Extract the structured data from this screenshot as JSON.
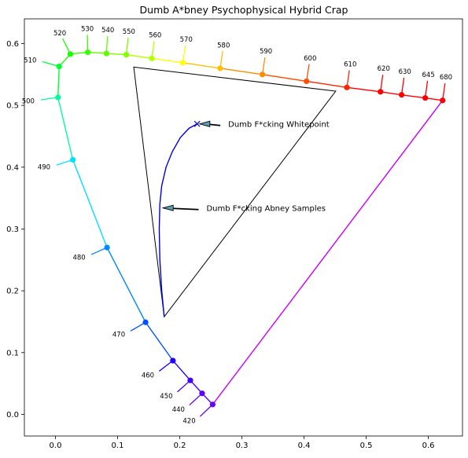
{
  "chart_data": {
    "type": "line",
    "title": "Dumb A*bney Psychophysical Hybrid Crap",
    "xlabel": "",
    "ylabel": "",
    "xlim": [
      -0.05,
      0.655
    ],
    "ylim": [
      -0.035,
      0.64
    ],
    "x_ticks": [
      0.0,
      0.1,
      0.2,
      0.3,
      0.4,
      0.5,
      0.6
    ],
    "x_tick_labels": [
      "0.0",
      "0.1",
      "0.2",
      "0.3",
      "0.4",
      "0.5",
      "0.6"
    ],
    "y_ticks": [
      0.0,
      0.1,
      0.2,
      0.3,
      0.4,
      0.5,
      0.6
    ],
    "y_tick_labels": [
      "0.0",
      "0.1",
      "0.2",
      "0.3",
      "0.4",
      "0.5",
      "0.6"
    ],
    "grid": false,
    "legend": "none",
    "spectral_locus": [
      {
        "wavelength": "420",
        "x": 0.253,
        "y": 0.016,
        "color": "#6a00ff"
      },
      {
        "wavelength": "440",
        "x": 0.236,
        "y": 0.034,
        "color": "#5a00ff"
      },
      {
        "wavelength": "450",
        "x": 0.217,
        "y": 0.055,
        "color": "#4400ff"
      },
      {
        "wavelength": "460",
        "x": 0.189,
        "y": 0.087,
        "color": "#2200ff"
      },
      {
        "wavelength": "470",
        "x": 0.145,
        "y": 0.149,
        "color": "#0050ff"
      },
      {
        "wavelength": "480",
        "x": 0.083,
        "y": 0.27,
        "color": "#0088ff"
      },
      {
        "wavelength": "490",
        "x": 0.028,
        "y": 0.412,
        "color": "#00e0ff"
      },
      {
        "wavelength": "500",
        "x": 0.004,
        "y": 0.513,
        "color": "#00ffa0"
      },
      {
        "wavelength": "510",
        "x": 0.006,
        "y": 0.563,
        "color": "#00ff30"
      },
      {
        "wavelength": "520",
        "x": 0.024,
        "y": 0.583,
        "color": "#18ff00"
      },
      {
        "wavelength": "530",
        "x": 0.052,
        "y": 0.586,
        "color": "#38ff00"
      },
      {
        "wavelength": "540",
        "x": 0.082,
        "y": 0.584,
        "color": "#5cff00"
      },
      {
        "wavelength": "550",
        "x": 0.114,
        "y": 0.582,
        "color": "#80ff00"
      },
      {
        "wavelength": "560",
        "x": 0.155,
        "y": 0.576,
        "color": "#b4ff00"
      },
      {
        "wavelength": "570",
        "x": 0.205,
        "y": 0.569,
        "color": "#ffff00"
      },
      {
        "wavelength": "580",
        "x": 0.265,
        "y": 0.56,
        "color": "#ffc000"
      },
      {
        "wavelength": "590",
        "x": 0.333,
        "y": 0.55,
        "color": "#ff8c00"
      },
      {
        "wavelength": "600",
        "x": 0.404,
        "y": 0.539,
        "color": "#ff5000"
      },
      {
        "wavelength": "610",
        "x": 0.469,
        "y": 0.529,
        "color": "#ff2400"
      },
      {
        "wavelength": "620",
        "x": 0.523,
        "y": 0.522,
        "color": "#ff0000"
      },
      {
        "wavelength": "630",
        "x": 0.557,
        "y": 0.517,
        "color": "#ff0000"
      },
      {
        "wavelength": "645",
        "x": 0.595,
        "y": 0.512,
        "color": "#ff0000"
      },
      {
        "wavelength": "680",
        "x": 0.623,
        "y": 0.508,
        "color": "#ff0000"
      }
    ],
    "purple_line_color": "#c800ff",
    "gamut_triangle": [
      {
        "x": 0.126,
        "y": 0.562
      },
      {
        "x": 0.451,
        "y": 0.523
      },
      {
        "x": 0.175,
        "y": 0.158
      }
    ],
    "abney_samples": [
      {
        "x": 0.175,
        "y": 0.158
      },
      {
        "x": 0.171,
        "y": 0.2
      },
      {
        "x": 0.168,
        "y": 0.25
      },
      {
        "x": 0.167,
        "y": 0.3
      },
      {
        "x": 0.168,
        "y": 0.34
      },
      {
        "x": 0.171,
        "y": 0.37
      },
      {
        "x": 0.178,
        "y": 0.4
      },
      {
        "x": 0.188,
        "y": 0.425
      },
      {
        "x": 0.201,
        "y": 0.448
      },
      {
        "x": 0.215,
        "y": 0.463
      },
      {
        "x": 0.228,
        "y": 0.47
      }
    ],
    "abney_color": "#0000dd",
    "whitepoint": {
      "x": 0.228,
      "y": 0.47
    },
    "annotations": [
      {
        "text": "Dumb F*cking Whitepoint",
        "text_x": 0.278,
        "text_y": 0.47,
        "arrow_x": 0.232,
        "arrow_y": 0.47
      },
      {
        "text": "Dumb F*cking Abney Samples",
        "text_x": 0.243,
        "text_y": 0.334,
        "arrow_x": 0.173,
        "arrow_y": 0.334
      }
    ]
  }
}
